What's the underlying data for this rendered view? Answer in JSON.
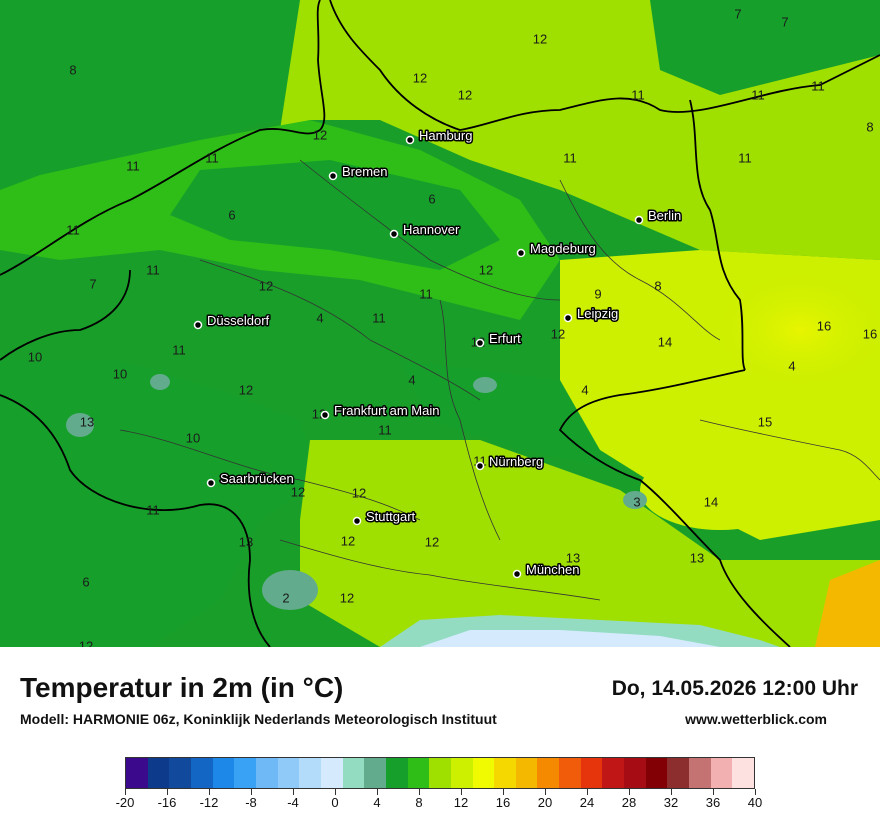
{
  "map": {
    "cities": [
      {
        "name": "Hamburg"
      },
      {
        "name": "Bremen"
      },
      {
        "name": "Hannover"
      },
      {
        "name": "Berlin"
      },
      {
        "name": "Magdeburg"
      },
      {
        "name": "Leipzig"
      },
      {
        "name": "Düsseldorf"
      },
      {
        "name": "Erfurt"
      },
      {
        "name": "Frankfurt am Main"
      },
      {
        "name": "Nürnberg"
      },
      {
        "name": "Saarbrücken"
      },
      {
        "name": "Stuttgart"
      },
      {
        "name": "München"
      }
    ],
    "values": [
      "8",
      "12",
      "12",
      "12",
      "7",
      "7",
      "11",
      "11",
      "11",
      "8",
      "11",
      "11",
      "12",
      "11",
      "6",
      "6",
      "11",
      "11",
      "11",
      "11",
      "10",
      "10",
      "7",
      "12",
      "11",
      "8",
      "9",
      "11",
      "4",
      "12",
      "12",
      "12",
      "16",
      "16",
      "12",
      "4",
      "14",
      "4",
      "11",
      "12",
      "12",
      "4",
      "15",
      "10",
      "11",
      "13",
      "11",
      "12",
      "12",
      "3",
      "14",
      "12",
      "13",
      "13",
      "13",
      "6",
      "2",
      "12",
      "12"
    ]
  },
  "footer": {
    "title": "Temperatur in 2m (in °C)",
    "subtitle": "Modell: HARMONIE 06z, Koninklijk Nederlands Meteorologisch Instituut",
    "datetime": "Do, 14.05.2026 12:00 Uhr",
    "website": "www.wetterblick.com"
  },
  "legend": {
    "colors": [
      "#3b0a8c",
      "#0d3a8a",
      "#114a9c",
      "#1466c4",
      "#1e88e8",
      "#3aa2f4",
      "#6fbaf6",
      "#8fcaf8",
      "#b3dcfb",
      "#d5ebfd",
      "#93dcc2",
      "#63ab8d",
      "#16a02b",
      "#2ebe17",
      "#9fe000",
      "#cdf000",
      "#f0fa00",
      "#f5d800",
      "#f5b800",
      "#f58a00",
      "#f05c0a",
      "#e6340c",
      "#c01616",
      "#a60c14",
      "#820005",
      "#8c2e2e",
      "#c47272",
      "#f2b0b0",
      "#fde0e0"
    ],
    "labels": [
      "-20",
      "-16",
      "-12",
      "-8",
      "-4",
      "0",
      "4",
      "8",
      "12",
      "16",
      "20",
      "24",
      "28",
      "32",
      "36",
      "40"
    ]
  }
}
